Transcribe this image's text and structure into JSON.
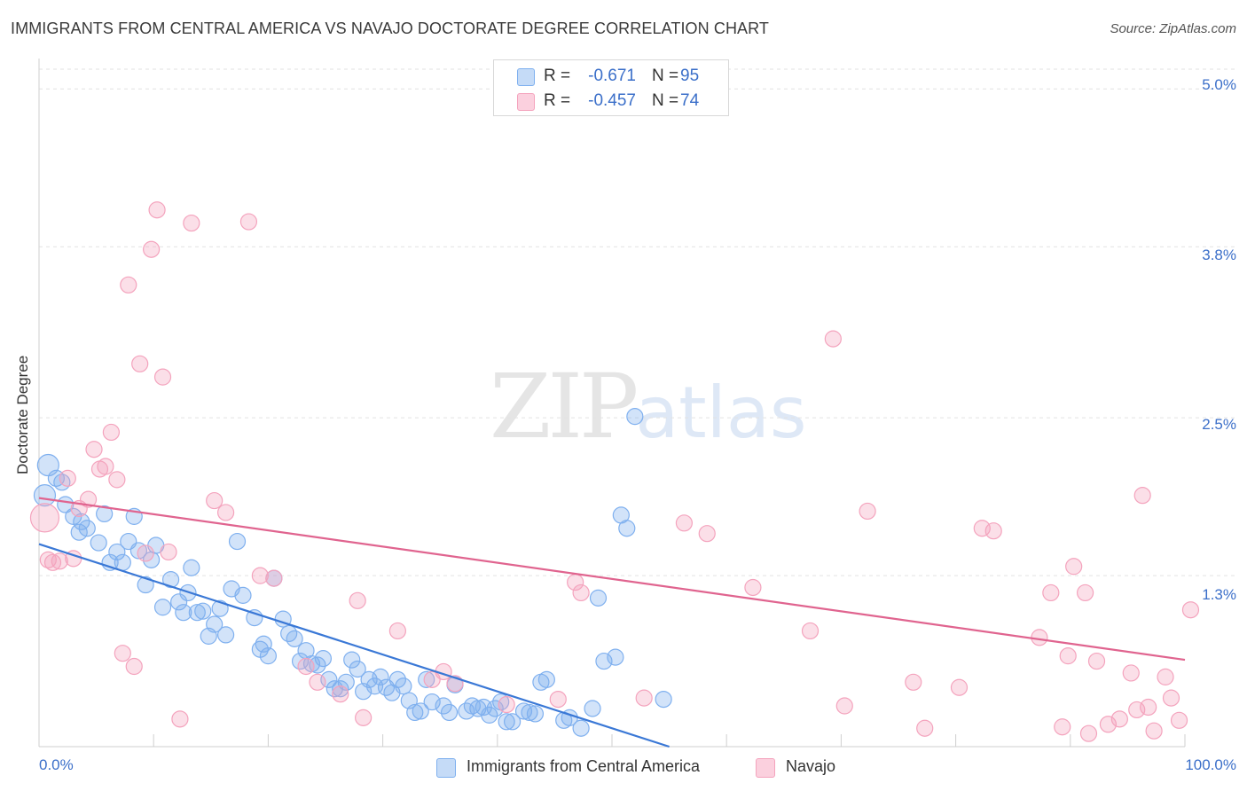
{
  "header": {
    "title": "IMMIGRANTS FROM CENTRAL AMERICA VS NAVAJO DOCTORATE DEGREE CORRELATION CHART",
    "source": "Source: ZipAtlas.com"
  },
  "watermark": {
    "zip": "ZIP",
    "atlas": "atlas"
  },
  "legend": {
    "series1": {
      "r_label": "R =",
      "r_value": "-0.671",
      "n_label": "N =",
      "n_value": "95"
    },
    "series2": {
      "r_label": "R =",
      "r_value": "-0.457",
      "n_label": "N =",
      "n_value": "74"
    }
  },
  "colors": {
    "blue": "#7fb0ef",
    "pink": "#f4a3bd",
    "blue_line": "#3a78d6",
    "pink_line": "#e0648f",
    "accent_text": "#3b6fc9"
  },
  "chart_data": {
    "type": "scatter",
    "title": "IMMIGRANTS FROM CENTRAL AMERICA VS NAVAJO DOCTORATE DEGREE CORRELATION CHART",
    "xlabel": "",
    "ylabel": "Doctorate Degree",
    "xlim": [
      0,
      100
    ],
    "ylim": [
      0,
      5.15
    ],
    "x_tick_labels": [
      "0.0%",
      "100.0%"
    ],
    "y_ticks": [
      1.3,
      2.5,
      3.8,
      5.0
    ],
    "y_tick_labels": [
      "1.3%",
      "2.5%",
      "3.8%",
      "5.0%"
    ],
    "grid": "horizontal dashed",
    "legend_position": "top-center",
    "series": [
      {
        "name": "Immigrants from Central America",
        "color": "#7fb0ef",
        "trend": {
          "x": [
            0,
            55
          ],
          "y": [
            1.54,
            0.0
          ]
        },
        "points": [
          [
            0.5,
            1.91
          ],
          [
            0.8,
            2.14
          ],
          [
            1.5,
            2.04
          ],
          [
            2.0,
            2.01
          ],
          [
            2.3,
            1.84
          ],
          [
            3.0,
            1.75
          ],
          [
            3.5,
            1.63
          ],
          [
            3.7,
            1.71
          ],
          [
            4.2,
            1.66
          ],
          [
            5.2,
            1.55
          ],
          [
            5.7,
            1.77
          ],
          [
            6.2,
            1.4
          ],
          [
            6.8,
            1.48
          ],
          [
            7.3,
            1.4
          ],
          [
            7.8,
            1.56
          ],
          [
            8.3,
            1.75
          ],
          [
            8.7,
            1.49
          ],
          [
            9.3,
            1.23
          ],
          [
            9.8,
            1.42
          ],
          [
            10.2,
            1.53
          ],
          [
            10.8,
            1.06
          ],
          [
            11.5,
            1.27
          ],
          [
            12.2,
            1.1
          ],
          [
            12.6,
            1.02
          ],
          [
            13.0,
            1.17
          ],
          [
            13.3,
            1.36
          ],
          [
            13.8,
            1.02
          ],
          [
            14.3,
            1.03
          ],
          [
            14.8,
            0.84
          ],
          [
            15.3,
            0.93
          ],
          [
            15.8,
            1.05
          ],
          [
            16.3,
            0.85
          ],
          [
            16.8,
            1.2
          ],
          [
            17.3,
            1.56
          ],
          [
            17.8,
            1.15
          ],
          [
            18.8,
            0.98
          ],
          [
            19.3,
            0.74
          ],
          [
            19.6,
            0.78
          ],
          [
            20.0,
            0.69
          ],
          [
            20.5,
            1.28
          ],
          [
            21.3,
            0.97
          ],
          [
            21.8,
            0.86
          ],
          [
            22.3,
            0.82
          ],
          [
            22.8,
            0.65
          ],
          [
            23.3,
            0.73
          ],
          [
            23.8,
            0.63
          ],
          [
            24.3,
            0.62
          ],
          [
            24.8,
            0.67
          ],
          [
            25.3,
            0.51
          ],
          [
            25.8,
            0.44
          ],
          [
            26.3,
            0.44
          ],
          [
            26.8,
            0.49
          ],
          [
            27.3,
            0.66
          ],
          [
            27.8,
            0.59
          ],
          [
            28.3,
            0.42
          ],
          [
            28.8,
            0.51
          ],
          [
            29.3,
            0.46
          ],
          [
            29.8,
            0.53
          ],
          [
            30.3,
            0.45
          ],
          [
            30.8,
            0.41
          ],
          [
            31.3,
            0.51
          ],
          [
            31.8,
            0.46
          ],
          [
            32.3,
            0.35
          ],
          [
            32.8,
            0.26
          ],
          [
            33.3,
            0.27
          ],
          [
            33.8,
            0.51
          ],
          [
            34.3,
            0.34
          ],
          [
            35.3,
            0.31
          ],
          [
            35.8,
            0.26
          ],
          [
            36.3,
            0.47
          ],
          [
            37.3,
            0.27
          ],
          [
            37.8,
            0.31
          ],
          [
            38.3,
            0.29
          ],
          [
            38.8,
            0.3
          ],
          [
            39.3,
            0.24
          ],
          [
            39.8,
            0.29
          ],
          [
            40.3,
            0.34
          ],
          [
            40.8,
            0.19
          ],
          [
            41.3,
            0.19
          ],
          [
            42.3,
            0.27
          ],
          [
            42.8,
            0.26
          ],
          [
            43.3,
            0.25
          ],
          [
            43.8,
            0.49
          ],
          [
            44.3,
            0.51
          ],
          [
            45.8,
            0.2
          ],
          [
            46.3,
            0.22
          ],
          [
            47.3,
            0.14
          ],
          [
            48.3,
            0.29
          ],
          [
            48.8,
            1.13
          ],
          [
            49.3,
            0.65
          ],
          [
            50.3,
            0.68
          ],
          [
            50.8,
            1.76
          ],
          [
            51.3,
            1.66
          ],
          [
            52.0,
            2.51
          ],
          [
            54.5,
            0.36
          ]
        ]
      },
      {
        "name": "Navajo",
        "color": "#f4a3bd",
        "trend": {
          "x": [
            0,
            100
          ],
          "y": [
            1.89,
            0.66
          ]
        },
        "points": [
          [
            0.5,
            1.74
          ],
          [
            0.8,
            1.42
          ],
          [
            1.2,
            1.4
          ],
          [
            1.8,
            1.41
          ],
          [
            2.5,
            2.04
          ],
          [
            3.0,
            1.43
          ],
          [
            3.5,
            1.81
          ],
          [
            4.3,
            1.88
          ],
          [
            4.8,
            2.26
          ],
          [
            5.3,
            2.11
          ],
          [
            5.8,
            2.13
          ],
          [
            6.3,
            2.39
          ],
          [
            6.8,
            2.03
          ],
          [
            7.3,
            0.71
          ],
          [
            7.8,
            3.51
          ],
          [
            8.3,
            0.61
          ],
          [
            8.8,
            2.91
          ],
          [
            9.3,
            1.47
          ],
          [
            9.8,
            3.78
          ],
          [
            10.3,
            4.08
          ],
          [
            10.8,
            2.81
          ],
          [
            11.3,
            1.48
          ],
          [
            12.3,
            0.21
          ],
          [
            13.3,
            3.98
          ],
          [
            15.3,
            1.87
          ],
          [
            16.3,
            1.78
          ],
          [
            18.3,
            3.99
          ],
          [
            19.3,
            1.3
          ],
          [
            20.5,
            1.28
          ],
          [
            23.3,
            0.61
          ],
          [
            24.3,
            0.49
          ],
          [
            26.3,
            0.4
          ],
          [
            27.8,
            1.11
          ],
          [
            28.3,
            0.22
          ],
          [
            31.3,
            0.88
          ],
          [
            34.3,
            0.51
          ],
          [
            35.3,
            0.57
          ],
          [
            36.3,
            0.48
          ],
          [
            40.8,
            0.32
          ],
          [
            45.3,
            0.36
          ],
          [
            46.8,
            1.25
          ],
          [
            47.3,
            1.17
          ],
          [
            52.8,
            0.37
          ],
          [
            56.3,
            1.7
          ],
          [
            58.3,
            1.62
          ],
          [
            62.3,
            1.21
          ],
          [
            67.3,
            0.88
          ],
          [
            69.3,
            3.1
          ],
          [
            70.3,
            0.31
          ],
          [
            72.3,
            1.79
          ],
          [
            76.3,
            0.49
          ],
          [
            77.3,
            0.14
          ],
          [
            80.3,
            0.45
          ],
          [
            82.3,
            1.66
          ],
          [
            83.3,
            1.64
          ],
          [
            87.3,
            0.83
          ],
          [
            88.3,
            1.17
          ],
          [
            89.3,
            0.15
          ],
          [
            89.8,
            0.69
          ],
          [
            90.3,
            1.37
          ],
          [
            91.3,
            1.17
          ],
          [
            91.6,
            0.1
          ],
          [
            92.3,
            0.65
          ],
          [
            93.3,
            0.17
          ],
          [
            94.3,
            0.21
          ],
          [
            95.3,
            0.56
          ],
          [
            95.8,
            0.28
          ],
          [
            96.3,
            1.91
          ],
          [
            96.8,
            0.3
          ],
          [
            97.3,
            0.12
          ],
          [
            98.3,
            0.53
          ],
          [
            98.8,
            0.37
          ],
          [
            99.5,
            0.2
          ],
          [
            100.5,
            1.04
          ]
        ]
      }
    ]
  },
  "bottom_legend": {
    "series1": "Immigrants from Central America",
    "series2": "Navajo"
  }
}
